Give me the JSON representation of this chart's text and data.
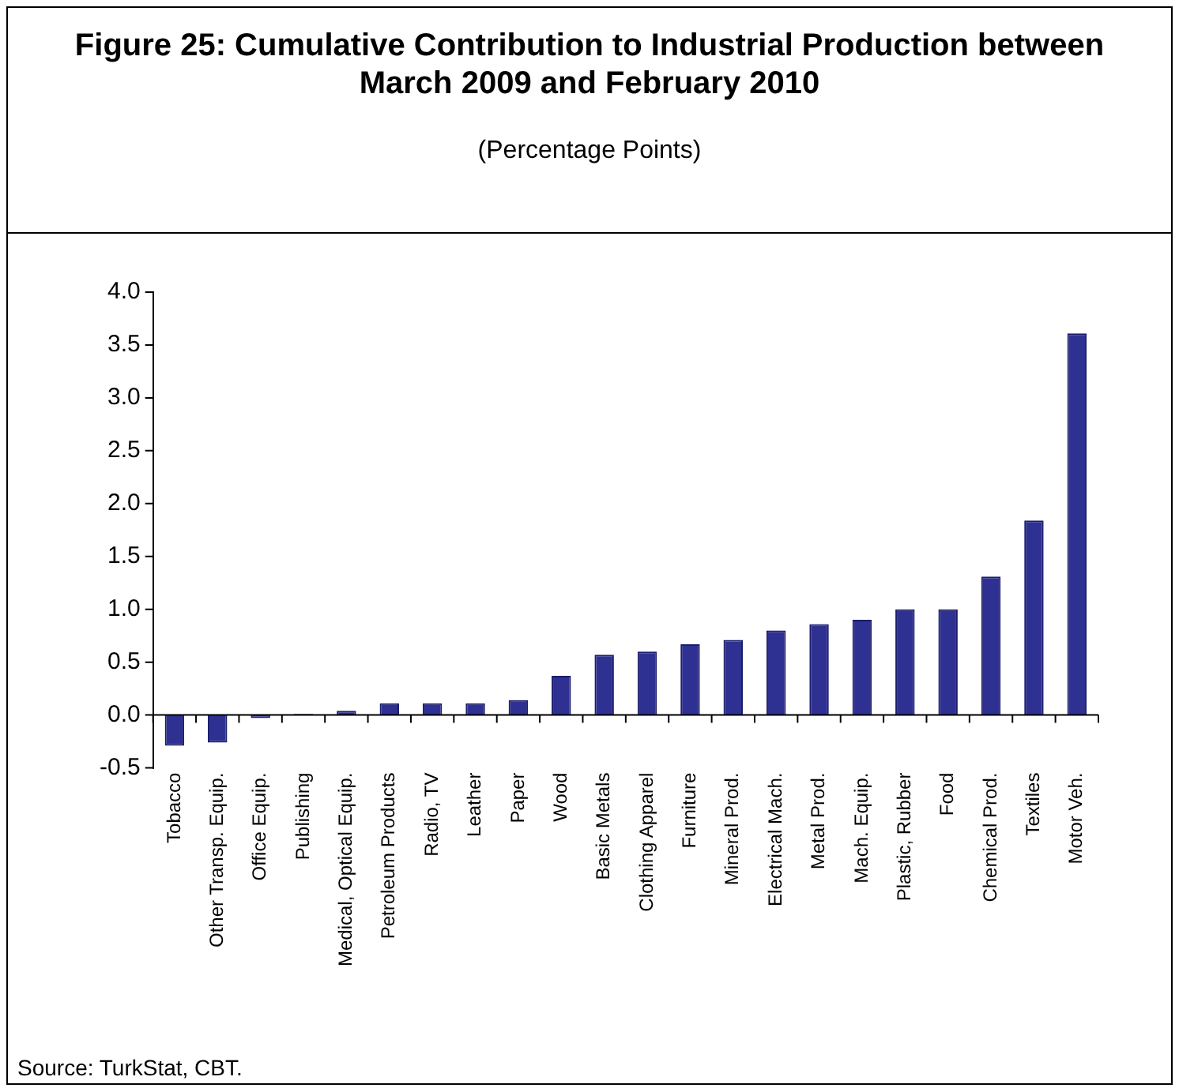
{
  "chart_data": {
    "type": "bar",
    "title": "Figure 25: Cumulative Contribution to Industrial Production between March 2009 and February 2010",
    "subtitle": "(Percentage Points)",
    "categories": [
      "Tobacco",
      "Other Transp. Equip.",
      "Office Equip.",
      "Publishing",
      "Medical, Optical Equip.",
      "Petroleum Products",
      "Radio, TV",
      "Leather",
      "Paper",
      "Wood",
      "Basic Metals",
      "Clothing Apparel",
      "Furniture",
      "Mineral Prod.",
      "Electrical Mach.",
      "Metal Prod.",
      "Mach. Equip.",
      "Plastic, Rubber",
      "Food",
      "Chemical Prod.",
      "Textiles",
      "Motor Veh."
    ],
    "values": [
      -0.29,
      -0.26,
      -0.03,
      0.01,
      0.04,
      0.11,
      0.11,
      0.11,
      0.14,
      0.37,
      0.57,
      0.6,
      0.67,
      0.71,
      0.8,
      0.86,
      0.9,
      1.0,
      1.0,
      1.31,
      1.84,
      3.61
    ],
    "color": "#2e3192",
    "ylim": [
      -0.5,
      4.0
    ],
    "yticks": [
      -0.5,
      {
        "value": 0,
        "label": "0.0"
      },
      0.5,
      {
        "value": 1,
        "label": "1.0"
      },
      1.5,
      {
        "value": 2,
        "label": "2.0"
      },
      2.5,
      {
        "value": 3,
        "label": "3.0"
      },
      3.5,
      {
        "value": 4,
        "label": "4.0"
      }
    ],
    "annotations": [
      "Source: TurkStat, CBT."
    ]
  }
}
